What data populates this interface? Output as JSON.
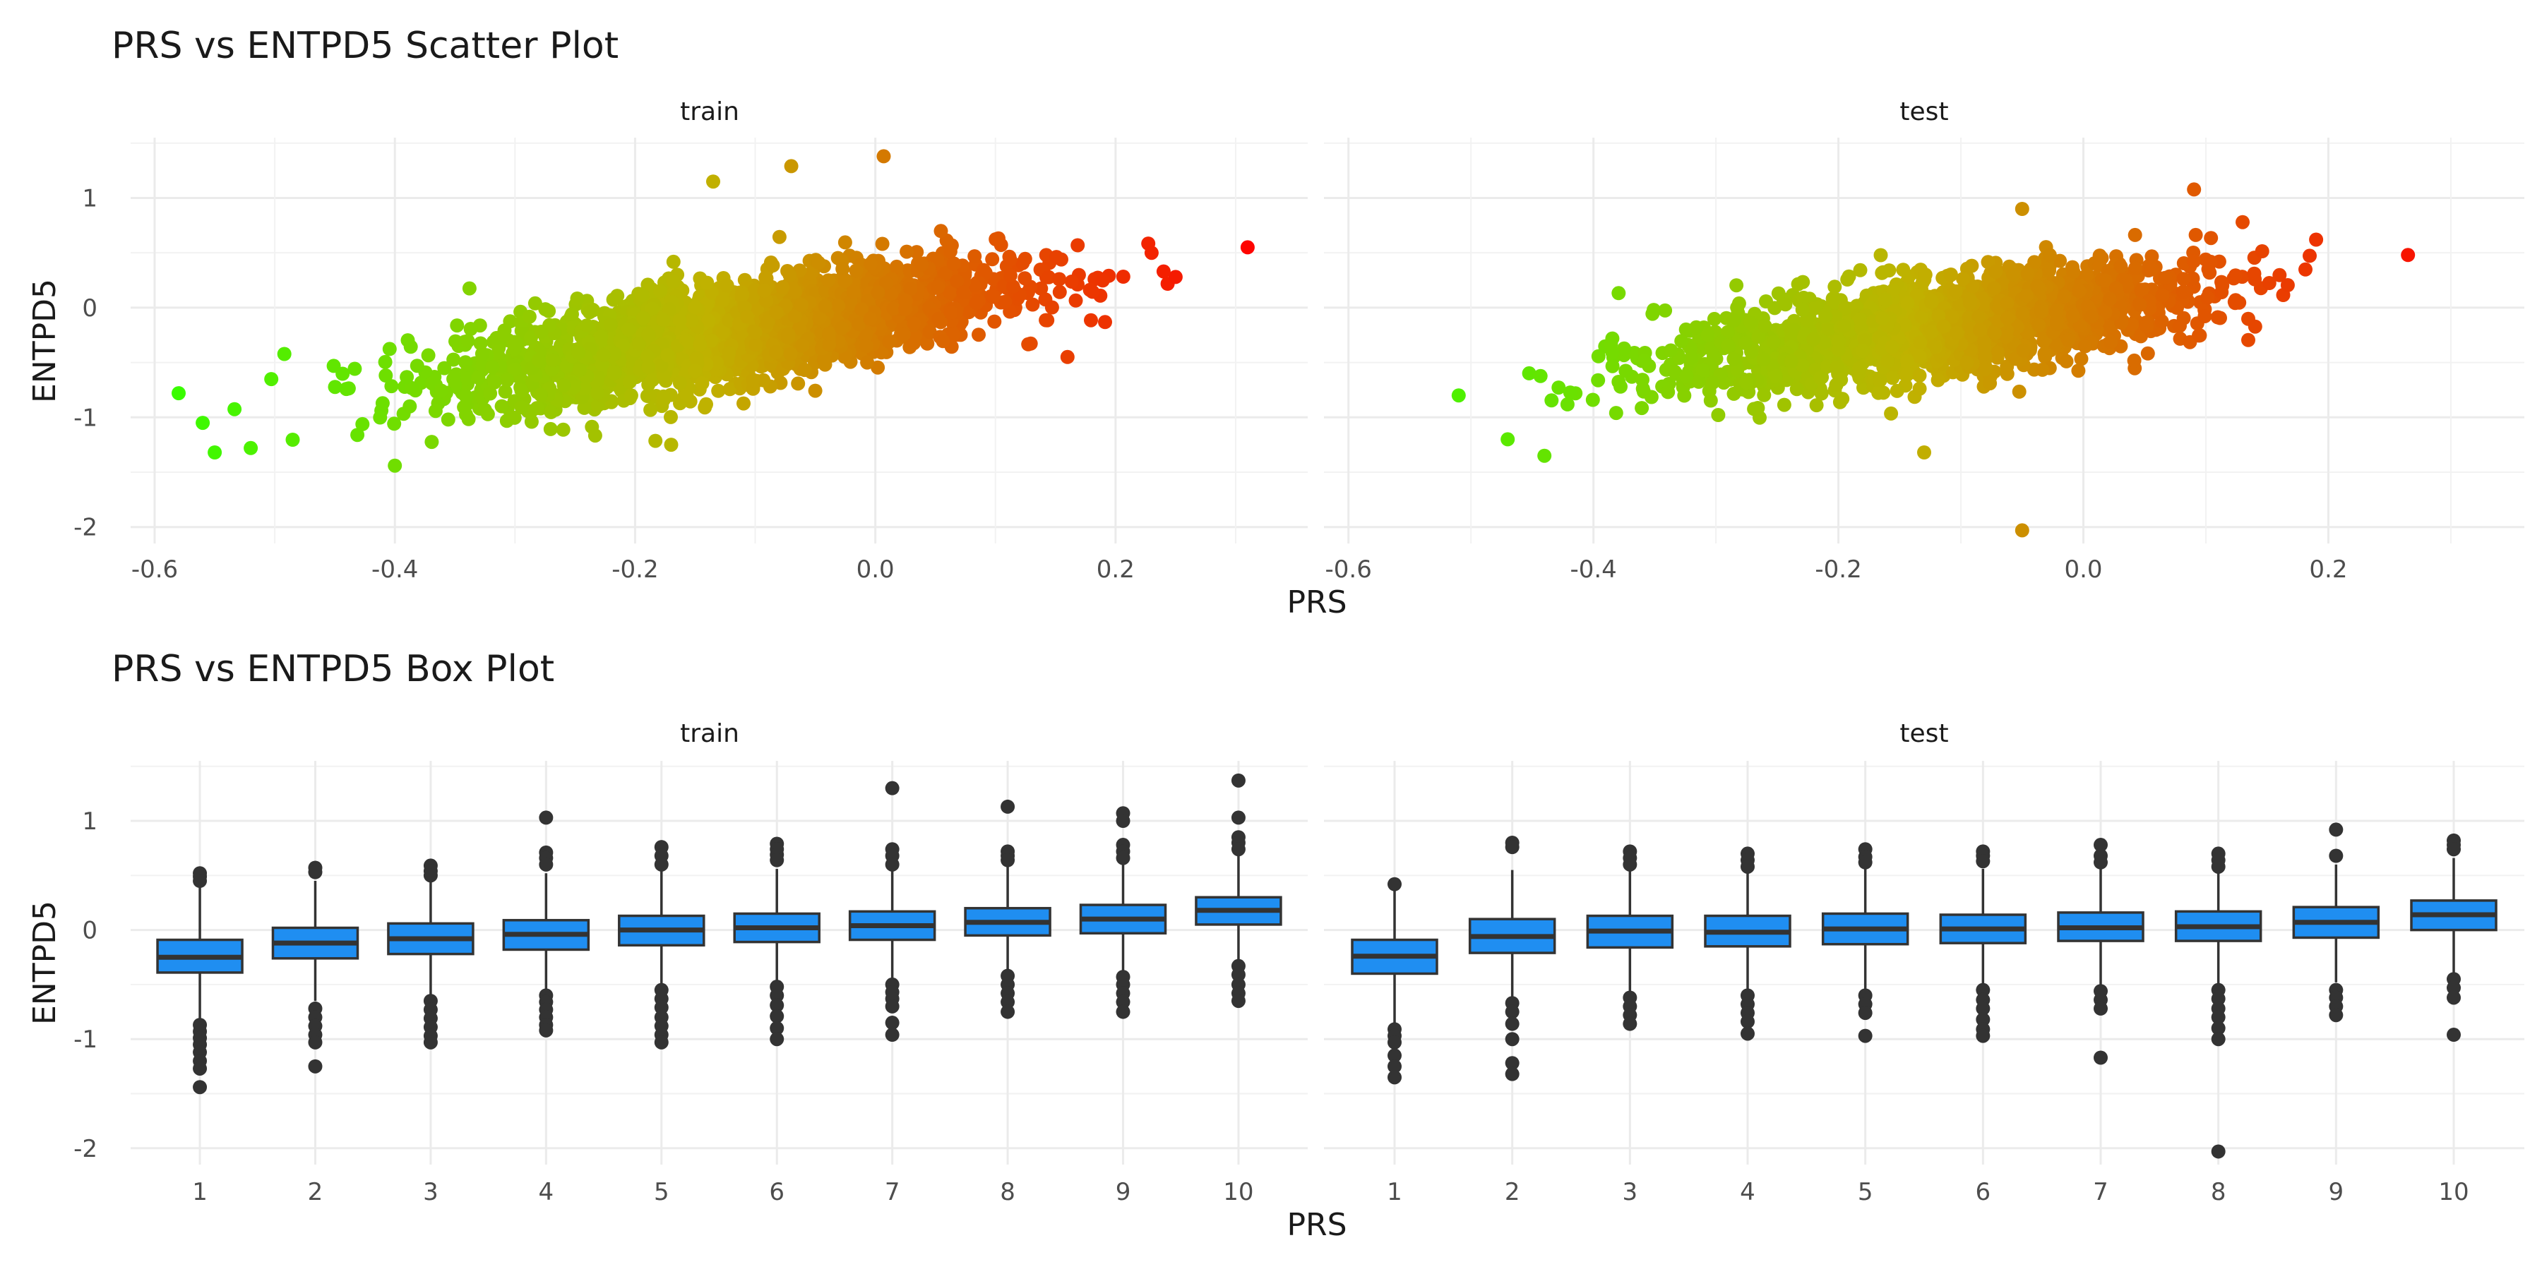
{
  "chart_data": [
    {
      "type": "scatter",
      "title": "PRS vs ENTPD5 Scatter Plot",
      "xlabel": "PRS",
      "ylabel": "ENTPD5",
      "xlim": [
        -0.62,
        0.36
      ],
      "ylim": [
        -2.15,
        1.55
      ],
      "x_ticks": [
        "-0.6",
        "-0.4",
        "-0.2",
        "0.0",
        "0.2"
      ],
      "x_tick_values": [
        -0.6,
        -0.4,
        -0.2,
        0.0,
        0.2
      ],
      "y_ticks": [
        "1",
        "0",
        "-1",
        "-2"
      ],
      "y_tick_values": [
        1,
        0,
        -1,
        -2
      ],
      "grid": true,
      "color_scale": {
        "low": "#33ff00",
        "mid": "#c0b200",
        "high": "#ff0000",
        "domain": [
          -0.6,
          0.32
        ]
      },
      "panels": [
        {
          "name": "train",
          "trend": {
            "slope": 1.8,
            "intercept": 0.0
          },
          "x_range": [
            -0.56,
            0.25
          ],
          "residual_sd": 0.22,
          "extremes": [
            {
              "x": 0.31,
              "y": 0.55
            },
            {
              "x": 0.25,
              "y": 0.28
            },
            {
              "x": 0.24,
              "y": 0.33
            },
            {
              "x": 0.23,
              "y": 0.5
            },
            {
              "x": 0.16,
              "y": -0.45
            },
            {
              "x": 0.007,
              "y": 1.38
            },
            {
              "x": -0.07,
              "y": 1.29
            },
            {
              "x": -0.135,
              "y": 1.15
            },
            {
              "x": -0.4,
              "y": -1.44
            },
            {
              "x": -0.56,
              "y": -1.05
            },
            {
              "x": -0.55,
              "y": -1.32
            },
            {
              "x": -0.58,
              "y": -0.78
            },
            {
              "x": -0.52,
              "y": -1.28
            },
            {
              "x": -0.17,
              "y": -1.25
            }
          ]
        },
        {
          "name": "test",
          "trend": {
            "slope": 1.5,
            "intercept": 0.0
          },
          "x_range": [
            -0.52,
            0.19
          ],
          "residual_sd": 0.22,
          "extremes": [
            {
              "x": 0.265,
              "y": 0.48
            },
            {
              "x": 0.19,
              "y": 0.62
            },
            {
              "x": -0.05,
              "y": -2.03
            },
            {
              "x": -0.44,
              "y": -1.35
            },
            {
              "x": -0.13,
              "y": -1.32
            },
            {
              "x": -0.51,
              "y": -0.8
            },
            {
              "x": -0.05,
              "y": 0.9
            },
            {
              "x": 0.13,
              "y": 0.78
            },
            {
              "x": -0.47,
              "y": -1.2
            }
          ]
        }
      ]
    },
    {
      "type": "box",
      "title": "PRS vs ENTPD5 Box Plot",
      "xlabel": "PRS",
      "ylabel": "ENTPD5",
      "categories": [
        "1",
        "2",
        "3",
        "4",
        "5",
        "6",
        "7",
        "8",
        "9",
        "10"
      ],
      "ylim": [
        -2.15,
        1.55
      ],
      "y_ticks": [
        "1",
        "0",
        "-1",
        "-2"
      ],
      "y_tick_values": [
        1,
        0,
        -1,
        -2
      ],
      "grid": true,
      "box_color": "#1f8ef1",
      "panels": [
        {
          "name": "train",
          "boxes": [
            {
              "q1": -0.39,
              "median": -0.25,
              "q3": -0.09,
              "low": -0.82,
              "high": 0.4,
              "outliers": [
                0.52,
                0.49,
                0.45,
                -0.87,
                -0.93,
                -0.99,
                -1.05,
                -1.12,
                -1.2,
                -1.27,
                -1.44
              ]
            },
            {
              "q1": -0.26,
              "median": -0.12,
              "q3": 0.02,
              "low": -0.65,
              "high": 0.45,
              "outliers": [
                0.57,
                0.53,
                -0.72,
                -0.8,
                -0.88,
                -0.96,
                -1.03,
                -1.25
              ]
            },
            {
              "q1": -0.22,
              "median": -0.08,
              "q3": 0.06,
              "low": -0.6,
              "high": 0.47,
              "outliers": [
                0.59,
                0.54,
                0.5,
                -0.65,
                -0.73,
                -0.81,
                -0.89,
                -0.97,
                -1.03
              ]
            },
            {
              "q1": -0.18,
              "median": -0.04,
              "q3": 0.09,
              "low": -0.55,
              "high": 0.52,
              "outliers": [
                1.03,
                0.71,
                0.66,
                0.6,
                -0.6,
                -0.66,
                -0.73,
                -0.8,
                -0.87,
                -0.92
              ]
            },
            {
              "q1": -0.14,
              "median": 0.0,
              "q3": 0.13,
              "low": -0.5,
              "high": 0.55,
              "outliers": [
                0.76,
                0.68,
                0.6,
                -0.55,
                -0.63,
                -0.71,
                -0.8,
                -0.88,
                -0.96,
                -1.03
              ]
            },
            {
              "q1": -0.11,
              "median": 0.02,
              "q3": 0.15,
              "low": -0.48,
              "high": 0.56,
              "outliers": [
                0.79,
                0.74,
                0.69,
                0.64,
                -0.52,
                -0.6,
                -0.69,
                -0.79,
                -0.9,
                -1.0
              ]
            },
            {
              "q1": -0.09,
              "median": 0.04,
              "q3": 0.17,
              "low": -0.45,
              "high": 0.56,
              "outliers": [
                1.3,
                0.74,
                0.68,
                0.6,
                -0.5,
                -0.57,
                -0.63,
                -0.7,
                -0.85,
                -0.96
              ]
            },
            {
              "q1": -0.05,
              "median": 0.07,
              "q3": 0.2,
              "low": -0.38,
              "high": 0.58,
              "outliers": [
                1.13,
                0.72,
                0.68,
                0.64,
                -0.42,
                -0.5,
                -0.58,
                -0.66,
                -0.75
              ]
            },
            {
              "q1": -0.03,
              "median": 0.1,
              "q3": 0.23,
              "low": -0.38,
              "high": 0.62,
              "outliers": [
                1.07,
                1.0,
                0.78,
                0.72,
                0.66,
                -0.43,
                -0.5,
                -0.58,
                -0.66,
                -0.75
              ]
            },
            {
              "q1": 0.05,
              "median": 0.18,
              "q3": 0.3,
              "low": -0.3,
              "high": 0.68,
              "outliers": [
                1.37,
                1.03,
                0.85,
                0.8,
                0.74,
                -0.33,
                -0.41,
                -0.5,
                -0.58,
                -0.65
              ]
            }
          ]
        },
        {
          "name": "test",
          "boxes": [
            {
              "q1": -0.4,
              "median": -0.24,
              "q3": -0.09,
              "low": -0.85,
              "high": 0.38,
              "outliers": [
                0.42,
                -0.91,
                -0.97,
                -1.03,
                -1.15,
                -1.25,
                -1.35
              ]
            },
            {
              "q1": -0.21,
              "median": -0.06,
              "q3": 0.1,
              "low": -0.62,
              "high": 0.55,
              "outliers": [
                0.8,
                0.76,
                -0.67,
                -0.75,
                -0.86,
                -1.0,
                -1.22,
                -1.32
              ]
            },
            {
              "q1": -0.16,
              "median": -0.01,
              "q3": 0.13,
              "low": -0.58,
              "high": 0.56,
              "outliers": [
                0.72,
                0.66,
                0.6,
                -0.62,
                -0.7,
                -0.78,
                -0.86
              ]
            },
            {
              "q1": -0.15,
              "median": -0.02,
              "q3": 0.13,
              "low": -0.56,
              "high": 0.55,
              "outliers": [
                0.7,
                0.64,
                0.58,
                -0.6,
                -0.68,
                -0.76,
                -0.84,
                -0.95
              ]
            },
            {
              "q1": -0.13,
              "median": 0.01,
              "q3": 0.15,
              "low": -0.55,
              "high": 0.57,
              "outliers": [
                0.74,
                0.67,
                0.62,
                -0.6,
                -0.68,
                -0.76,
                -0.97
              ]
            },
            {
              "q1": -0.12,
              "median": 0.01,
              "q3": 0.14,
              "low": -0.52,
              "high": 0.56,
              "outliers": [
                0.72,
                0.68,
                0.63,
                -0.55,
                -0.64,
                -0.72,
                -0.82,
                -0.91,
                -0.97
              ]
            },
            {
              "q1": -0.1,
              "median": 0.02,
              "q3": 0.16,
              "low": -0.5,
              "high": 0.56,
              "outliers": [
                0.78,
                0.68,
                0.62,
                -0.56,
                -0.64,
                -0.72,
                -1.17
              ]
            },
            {
              "q1": -0.1,
              "median": 0.03,
              "q3": 0.17,
              "low": -0.5,
              "high": 0.57,
              "outliers": [
                0.7,
                0.64,
                0.58,
                -0.55,
                -0.63,
                -0.72,
                -0.8,
                -0.9,
                -1.0,
                -2.03
              ]
            },
            {
              "q1": -0.07,
              "median": 0.07,
              "q3": 0.21,
              "low": -0.48,
              "high": 0.6,
              "outliers": [
                0.92,
                0.68,
                -0.55,
                -0.62,
                -0.7,
                -0.78
              ]
            },
            {
              "q1": 0.0,
              "median": 0.14,
              "q3": 0.27,
              "low": -0.4,
              "high": 0.66,
              "outliers": [
                0.82,
                0.78,
                0.74,
                -0.45,
                -0.53,
                -0.62,
                -0.96
              ]
            }
          ]
        }
      ]
    }
  ]
}
